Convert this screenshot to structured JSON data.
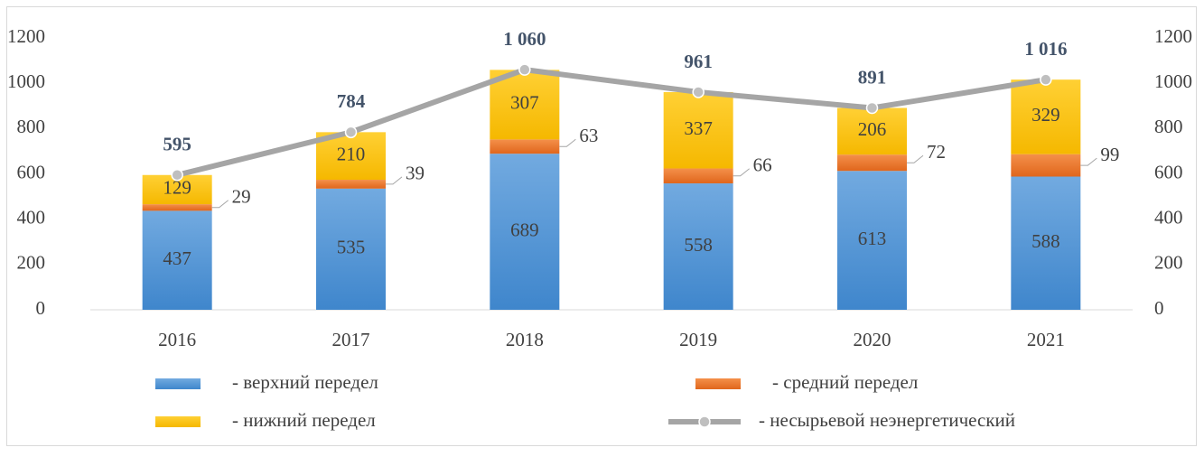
{
  "chart_data": {
    "type": "bar",
    "stacked": true,
    "categories": [
      "2016",
      "2017",
      "2018",
      "2019",
      "2020",
      "2021"
    ],
    "series": [
      {
        "name": "- верхний передел",
        "color": "#5b9bd5",
        "values": [
          437,
          535,
          689,
          558,
          613,
          588
        ]
      },
      {
        "name": "- средний передел",
        "color": "#ed7d31",
        "values": [
          29,
          39,
          63,
          66,
          72,
          99
        ]
      },
      {
        "name": "- нижний передел",
        "color": "#ffc000",
        "values": [
          129,
          210,
          307,
          337,
          206,
          329
        ]
      },
      {
        "name": "- несырьевой неэнергетический",
        "color": "#a5a5a5",
        "type": "line",
        "axis": "y2",
        "values": [
          595,
          784,
          1060,
          961,
          891,
          1016
        ],
        "value_labels": [
          "595",
          "784",
          "1 060",
          "961",
          "891",
          "1 016"
        ]
      }
    ],
    "ylim": [
      0,
      1200
    ],
    "yticks": [
      0,
      200,
      400,
      600,
      800,
      1000,
      1200
    ],
    "y2lim": [
      0,
      1200
    ],
    "y2ticks": [
      0,
      200,
      400,
      600,
      800,
      1000,
      1200
    ]
  }
}
